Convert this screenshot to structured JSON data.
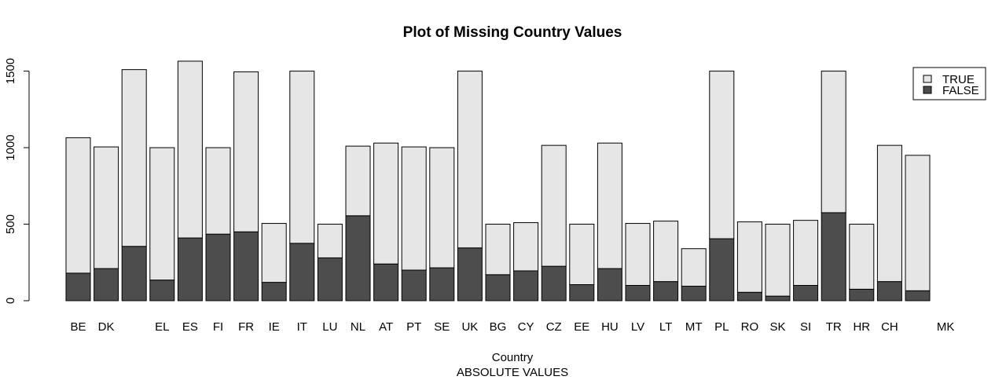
{
  "chart_data": {
    "type": "bar",
    "stacked": true,
    "title": "Plot of Missing Country Values",
    "xlabel": "Country",
    "subtitle": "ABSOLUTE VALUES",
    "ylabel": "",
    "ylim": [
      0,
      1580
    ],
    "yticks": [
      0,
      500,
      1000,
      1500
    ],
    "legend_position": "top-right",
    "categories": [
      "BE",
      "DK",
      "",
      "EL",
      "ES",
      "FI",
      "FR",
      "IE",
      "IT",
      "LU",
      "NL",
      "AT",
      "PT",
      "SE",
      "UK",
      "BG",
      "CY",
      "CZ",
      "EE",
      "HU",
      "LV",
      "LT",
      "MT",
      "PL",
      "RO",
      "SK",
      "SI",
      "TR",
      "HR",
      "CH",
      "",
      "MK"
    ],
    "series": [
      {
        "name": "FALSE",
        "color": "#4d4d4d",
        "values": [
          180,
          210,
          355,
          135,
          410,
          435,
          450,
          120,
          375,
          280,
          555,
          240,
          200,
          215,
          345,
          170,
          195,
          225,
          105,
          210,
          100,
          125,
          95,
          405,
          55,
          30,
          100,
          575,
          75,
          125,
          65,
          0
        ]
      },
      {
        "name": "TRUE",
        "color": "#e6e6e6",
        "values": [
          885,
          795,
          1155,
          865,
          1155,
          565,
          1045,
          385,
          1125,
          220,
          455,
          790,
          805,
          785,
          1155,
          330,
          315,
          790,
          395,
          820,
          405,
          395,
          245,
          1095,
          460,
          470,
          425,
          925,
          425,
          890,
          885,
          0
        ]
      }
    ]
  }
}
